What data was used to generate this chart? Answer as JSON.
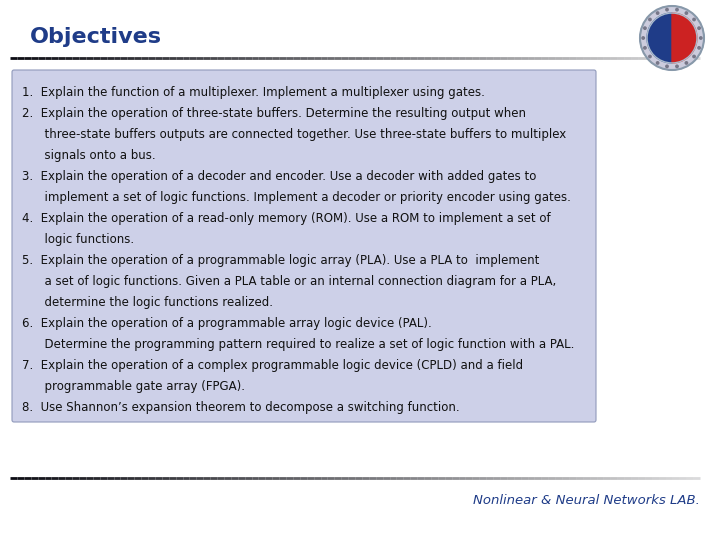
{
  "title": "Objectives",
  "title_color": "#1F3C88",
  "bg_color": "#FFFFFF",
  "box_bg_color": "#CDD0E8",
  "box_border_color": "#9099BB",
  "footer_text": "Nonlinear & Neural Networks LAB.",
  "footer_color": "#1F3C88",
  "line_color_left": "#111111",
  "line_color_right": "#AAAAAA",
  "body_lines": [
    "1.  Explain the function of a multiplexer. Implement a multiplexer using gates.",
    "2.  Explain the operation of three-state buffers. Determine the resulting output when",
    "      three-state buffers outputs are connected together. Use three-state buffers to multiplex",
    "      signals onto a bus.",
    "3.  Explain the operation of a decoder and encoder. Use a decoder with added gates to",
    "      implement a set of logic functions. Implement a decoder or priority encoder using gates.",
    "4.  Explain the operation of a read-only memory (ROM). Use a ROM to implement a set of",
    "      logic functions.",
    "5.  Explain the operation of a programmable logic array (PLA). Use a PLA to  implement",
    "      a set of logic functions. Given a PLA table or an internal connection diagram for a PLA,",
    "      determine the logic functions realized.",
    "6.  Explain the operation of a programmable array logic device (PAL).",
    "      Determine the programming pattern required to realize a set of logic function with a PAL.",
    "7.  Explain the operation of a complex programmable logic device (CPLD) and a field",
    "      programmable gate array (FPGA).",
    "8.  Use Shannon’s expansion theorem to decompose a switching function."
  ],
  "text_color": "#111111",
  "font_size": 8.5
}
